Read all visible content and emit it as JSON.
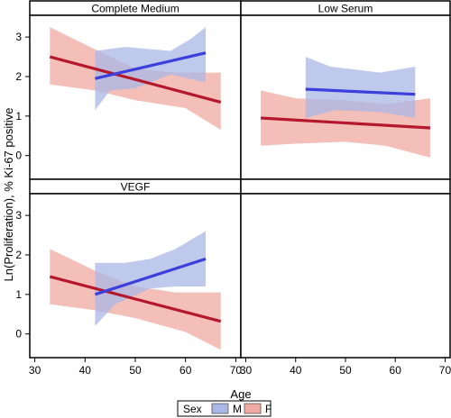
{
  "chart_data": {
    "type": "line",
    "xlabel": "Age",
    "ylabel": "Ln(Proliferation), % Ki-67 positive",
    "x_ticks": [
      30,
      40,
      50,
      60,
      70
    ],
    "y_ticks": [
      0,
      1,
      2,
      3
    ],
    "xlim": [
      29,
      71
    ],
    "ylim": [
      -0.6,
      3.55
    ],
    "legend": {
      "title": "Sex",
      "placement": "bottom",
      "items": [
        {
          "key": "M",
          "label": "M",
          "color": "#3b3fdc",
          "fill": "#a9b7e6"
        },
        {
          "key": "F",
          "label": "F",
          "color": "#b5182c",
          "fill": "#f0a9a0"
        }
      ]
    },
    "panels": [
      {
        "title": "Complete Medium",
        "series": [
          {
            "key": "M",
            "line": [
              [
                42,
                1.95
              ],
              [
                64,
                2.6
              ]
            ],
            "band_upper": [
              [
                42,
                2.65
              ],
              [
                48,
                2.75
              ],
              [
                57,
                2.65
              ],
              [
                61,
                2.95
              ],
              [
                64,
                3.25
              ]
            ],
            "band_lower": [
              [
                42,
                1.15
              ],
              [
                45,
                1.65
              ],
              [
                50,
                1.7
              ],
              [
                57,
                2.05
              ],
              [
                64,
                1.85
              ]
            ]
          },
          {
            "key": "F",
            "line": [
              [
                33,
                2.5
              ],
              [
                67,
                1.35
              ]
            ],
            "band_upper": [
              [
                33,
                3.25
              ],
              [
                41,
                2.75
              ],
              [
                50,
                2.2
              ],
              [
                58,
                2.1
              ],
              [
                67,
                2.1
              ]
            ],
            "band_lower": [
              [
                33,
                1.8
              ],
              [
                42,
                1.65
              ],
              [
                50,
                1.4
              ],
              [
                60,
                1.2
              ],
              [
                67,
                0.65
              ]
            ]
          }
        ]
      },
      {
        "title": "Low Serum",
        "series": [
          {
            "key": "M",
            "line": [
              [
                42,
                1.68
              ],
              [
                64,
                1.55
              ]
            ],
            "band_upper": [
              [
                42,
                2.5
              ],
              [
                47,
                2.25
              ],
              [
                57,
                2.1
              ],
              [
                64,
                2.25
              ]
            ],
            "band_lower": [
              [
                42,
                0.95
              ],
              [
                48,
                1.15
              ],
              [
                57,
                1.1
              ],
              [
                64,
                0.95
              ]
            ]
          },
          {
            "key": "F",
            "line": [
              [
                33,
                0.95
              ],
              [
                67,
                0.7
              ]
            ],
            "band_upper": [
              [
                33,
                1.65
              ],
              [
                40,
                1.45
              ],
              [
                50,
                1.4
              ],
              [
                58,
                1.3
              ],
              [
                67,
                1.45
              ]
            ],
            "band_lower": [
              [
                33,
                0.25
              ],
              [
                40,
                0.3
              ],
              [
                50,
                0.35
              ],
              [
                58,
                0.25
              ],
              [
                67,
                -0.05
              ]
            ]
          }
        ]
      },
      {
        "title": "VEGF",
        "series": [
          {
            "key": "M",
            "line": [
              [
                42,
                1.0
              ],
              [
                64,
                1.9
              ]
            ],
            "band_upper": [
              [
                42,
                1.8
              ],
              [
                48,
                1.8
              ],
              [
                53,
                1.9
              ],
              [
                58,
                2.15
              ],
              [
                64,
                2.6
              ]
            ],
            "band_lower": [
              [
                42,
                0.2
              ],
              [
                46,
                0.75
              ],
              [
                53,
                1.15
              ],
              [
                58,
                1.2
              ],
              [
                64,
                1.2
              ]
            ]
          },
          {
            "key": "F",
            "line": [
              [
                33,
                1.45
              ],
              [
                67,
                0.32
              ]
            ],
            "band_upper": [
              [
                33,
                2.15
              ],
              [
                42,
                1.6
              ],
              [
                50,
                1.2
              ],
              [
                58,
                1.05
              ],
              [
                67,
                1.05
              ]
            ],
            "band_lower": [
              [
                33,
                0.75
              ],
              [
                42,
                0.6
              ],
              [
                50,
                0.4
              ],
              [
                60,
                0.05
              ],
              [
                67,
                -0.4
              ]
            ]
          }
        ]
      },
      {
        "title": "",
        "series": []
      }
    ]
  }
}
